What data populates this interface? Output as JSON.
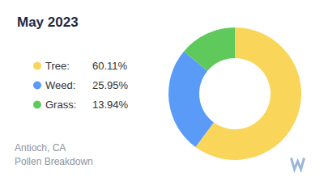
{
  "chart_data": {
    "type": "pie",
    "title": "May 2023",
    "categories": [
      "Tree:",
      "Weed:",
      "Grass:"
    ],
    "values": [
      60.11,
      25.95,
      13.94
    ],
    "value_labels": [
      "60.11%",
      "25.95%",
      "13.94%"
    ],
    "colors": [
      "#f9d55a",
      "#5b9bf8",
      "#5fc95b"
    ],
    "legend": "left",
    "annotations": [
      "Antioch, CA",
      "Pollen Breakdown"
    ]
  }
}
